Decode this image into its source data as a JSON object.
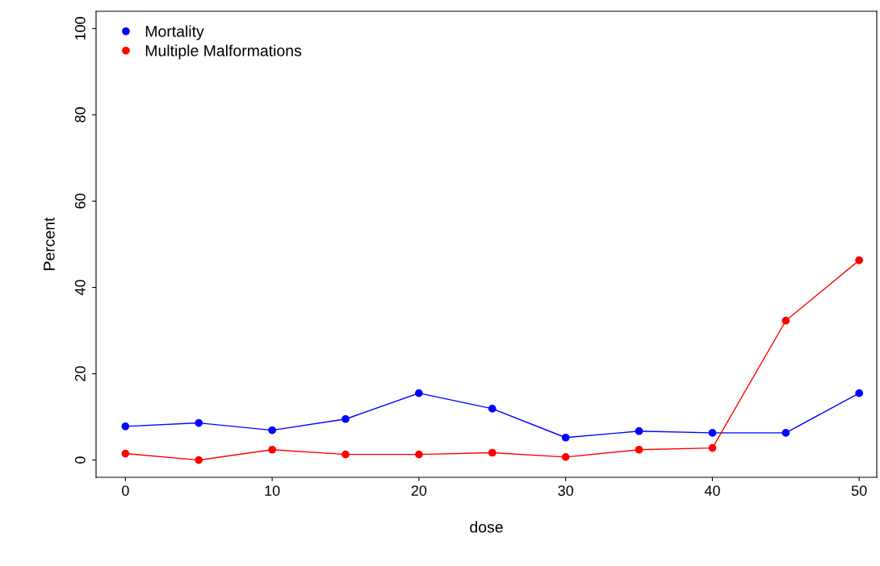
{
  "chart_data": {
    "type": "line",
    "xlabel": "dose",
    "ylabel": "Percent",
    "x": [
      0,
      5,
      10,
      15,
      20,
      25,
      30,
      35,
      40,
      45,
      50
    ],
    "series": [
      {
        "name": "Mortality",
        "color": "#0000ff",
        "values": [
          7.8,
          8.6,
          6.9,
          9.5,
          15.5,
          11.9,
          5.2,
          6.7,
          6.3,
          6.3,
          15.5
        ]
      },
      {
        "name": "Multiple Malformations",
        "color": "#ff0000",
        "values": [
          1.5,
          0,
          2.4,
          1.3,
          1.3,
          1.7,
          0.7,
          2.4,
          2.8,
          32.3,
          46.3
        ]
      }
    ],
    "xlim": [
      -2,
      51.2
    ],
    "ylim": [
      -4,
      104
    ],
    "xticks": [
      0,
      10,
      20,
      30,
      40,
      50
    ],
    "yticks": [
      0,
      20,
      40,
      60,
      80,
      100
    ],
    "grid": false,
    "legend": "top left",
    "marker": "circle",
    "line_style": "solid"
  }
}
